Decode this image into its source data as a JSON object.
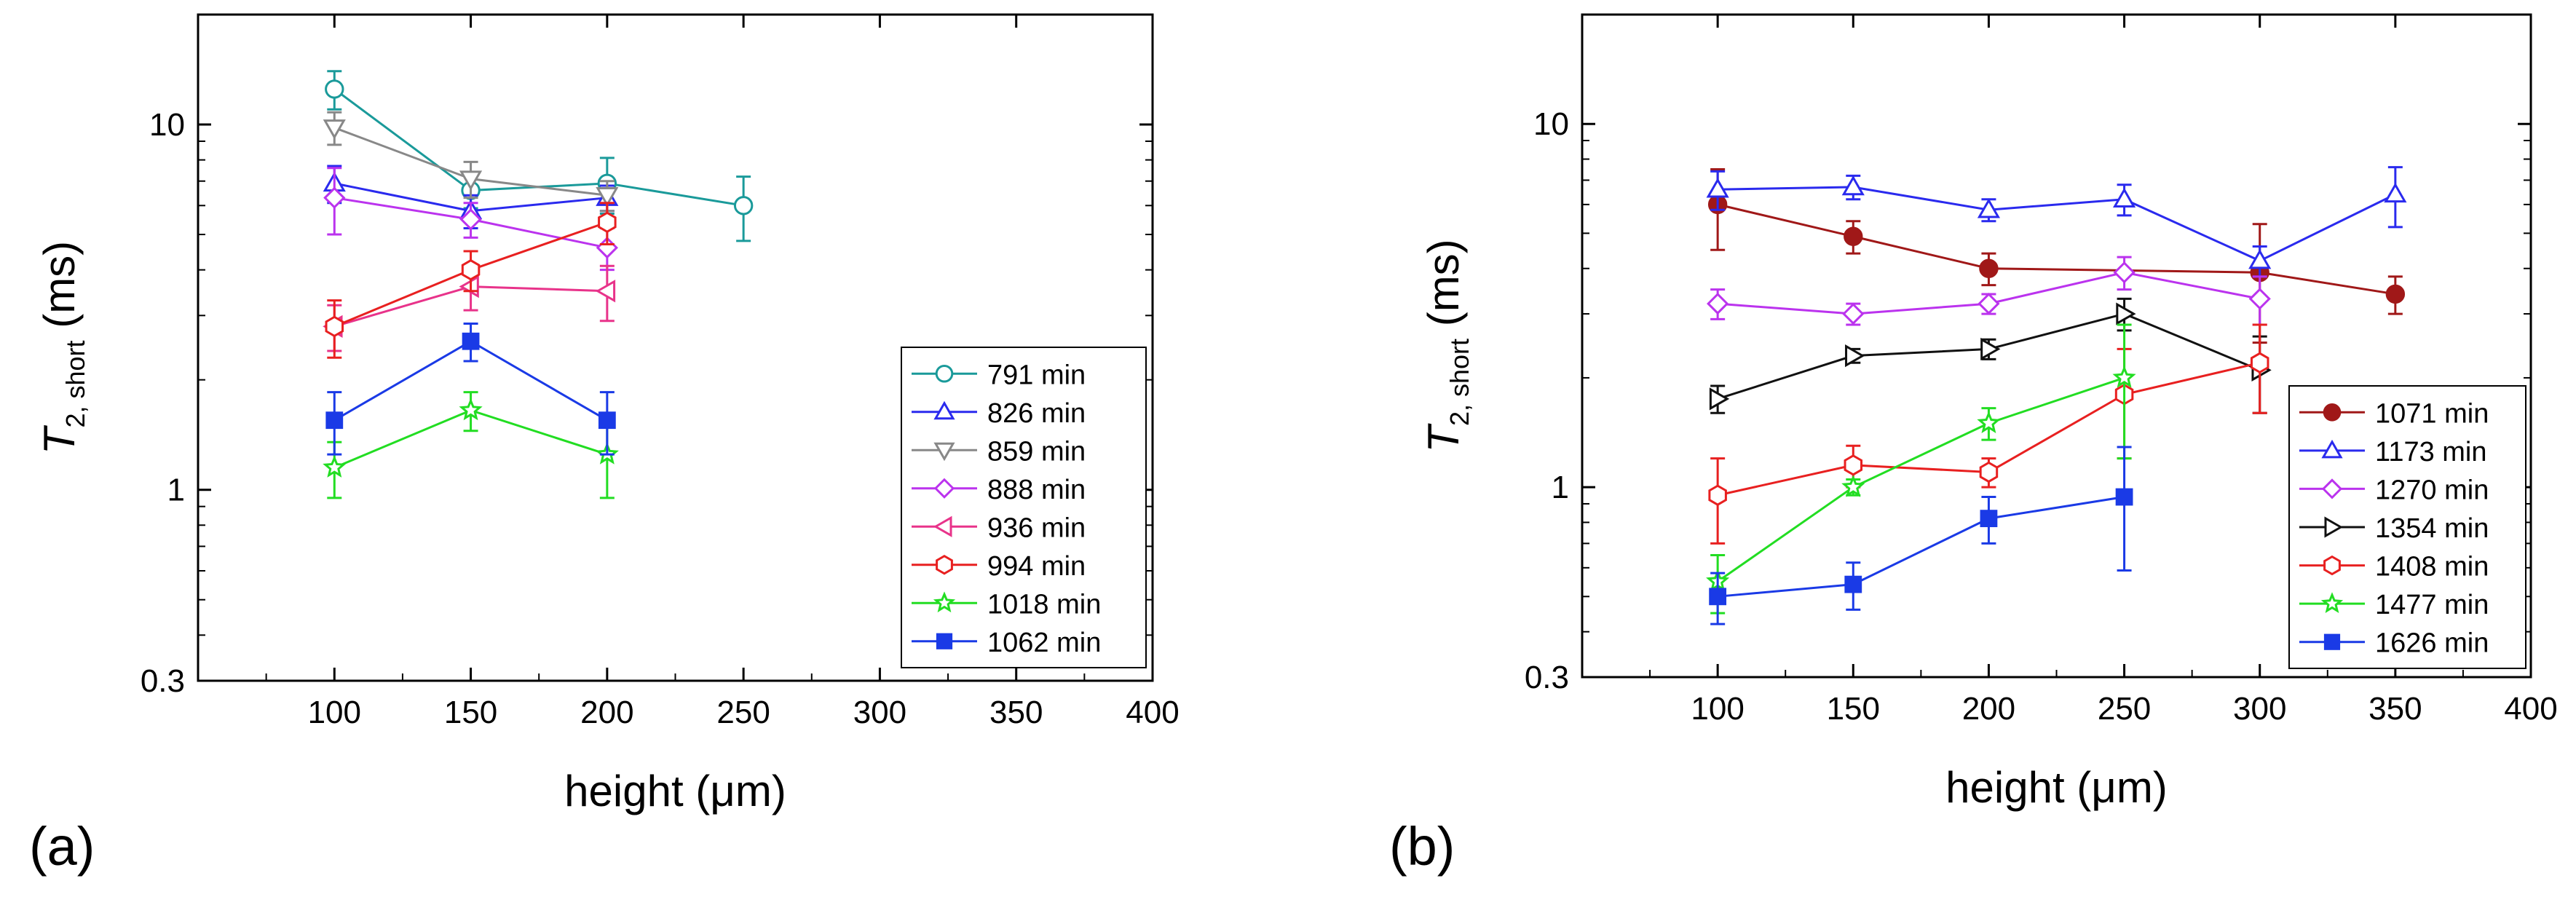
{
  "panels": [
    {
      "label": "(a)"
    },
    {
      "label": "(b)"
    }
  ],
  "chart_data": [
    {
      "type": "scatter",
      "panel": "(a)",
      "xlabel": "height (μm)",
      "ylabel_main": "T",
      "ylabel_sub": "2, short",
      "ylabel_unit": "(ms)",
      "xlim": [
        50,
        400
      ],
      "ylim": [
        0.3,
        20
      ],
      "yscale": "log",
      "xticks": [
        100,
        150,
        200,
        250,
        300,
        350,
        400
      ],
      "yticks": [
        0.3,
        1,
        10
      ],
      "ytick_labels": [
        "0.3",
        "1",
        "10"
      ],
      "legend_position": "right",
      "series": [
        {
          "name": "791 min",
          "color": "#1a9a9a",
          "marker": "circle",
          "filled": false,
          "x": [
            100,
            150,
            200,
            250
          ],
          "y": [
            12.5,
            6.6,
            6.9,
            6.0
          ],
          "err": [
            1.5,
            0.7,
            1.2,
            1.2
          ]
        },
        {
          "name": "826 min",
          "color": "#2a2aee",
          "marker": "triangle-up",
          "filled": false,
          "x": [
            100,
            150,
            200
          ],
          "y": [
            6.9,
            5.8,
            6.3
          ],
          "err": [
            0.8,
            0.6,
            0.5
          ]
        },
        {
          "name": "859 min",
          "color": "#888888",
          "marker": "triangle-down",
          "filled": false,
          "x": [
            100,
            150,
            200
          ],
          "y": [
            9.8,
            7.1,
            6.4
          ],
          "err": [
            1.0,
            0.8,
            0.6
          ]
        },
        {
          "name": "888 min",
          "color": "#bb33ee",
          "marker": "diamond",
          "filled": false,
          "x": [
            100,
            150,
            200
          ],
          "y": [
            6.3,
            5.5,
            4.6
          ],
          "err": [
            1.3,
            0.6,
            0.6
          ]
        },
        {
          "name": "936 min",
          "color": "#e8338a",
          "marker": "triangle-left",
          "filled": false,
          "x": [
            100,
            150,
            200
          ],
          "y": [
            2.8,
            3.6,
            3.5
          ],
          "err": [
            0.4,
            0.5,
            0.6
          ]
        },
        {
          "name": "994 min",
          "color": "#e82020",
          "marker": "hexagon",
          "filled": false,
          "x": [
            100,
            150,
            200
          ],
          "y": [
            2.8,
            4.0,
            5.4
          ],
          "err": [
            0.5,
            0.5,
            0.7
          ]
        },
        {
          "name": "1018 min",
          "color": "#22dd22",
          "marker": "star",
          "filled": false,
          "x": [
            100,
            150,
            200
          ],
          "y": [
            1.15,
            1.65,
            1.25
          ],
          "err": [
            0.2,
            0.2,
            0.3
          ]
        },
        {
          "name": "1062 min",
          "color": "#1a3ae6",
          "marker": "square",
          "filled": true,
          "x": [
            100,
            150,
            200
          ],
          "y": [
            1.55,
            2.55,
            1.55
          ],
          "err": [
            0.3,
            0.3,
            0.3
          ]
        }
      ]
    },
    {
      "type": "scatter",
      "panel": "(b)",
      "xlabel": "height (μm)",
      "ylabel_main": "T",
      "ylabel_sub": "2, short",
      "ylabel_unit": "(ms)",
      "xlim": [
        50,
        400
      ],
      "ylim": [
        0.3,
        20
      ],
      "yscale": "log",
      "xticks": [
        100,
        150,
        200,
        250,
        300,
        350,
        400
      ],
      "yticks": [
        0.3,
        1,
        10
      ],
      "ytick_labels": [
        "0.3",
        "1",
        "10"
      ],
      "legend_position": "right",
      "series": [
        {
          "name": "1071 min",
          "color": "#a01818",
          "marker": "circle",
          "filled": true,
          "x": [
            100,
            150,
            200,
            300,
            350
          ],
          "y": [
            6.0,
            4.9,
            4.0,
            3.9,
            3.4
          ],
          "err": [
            1.5,
            0.5,
            0.4,
            1.4,
            0.4
          ]
        },
        {
          "name": "1173 min",
          "color": "#2a2aee",
          "marker": "triangle-up",
          "filled": false,
          "x": [
            100,
            150,
            200,
            250,
            300,
            350
          ],
          "y": [
            6.6,
            6.7,
            5.8,
            6.2,
            4.2,
            6.4
          ],
          "err": [
            0.8,
            0.5,
            0.4,
            0.6,
            0.4,
            1.2
          ]
        },
        {
          "name": "1270 min",
          "color": "#bb33ee",
          "marker": "diamond",
          "filled": false,
          "x": [
            100,
            150,
            200,
            250,
            300
          ],
          "y": [
            3.2,
            3.0,
            3.2,
            3.9,
            3.3
          ],
          "err": [
            0.3,
            0.2,
            0.2,
            0.4,
            0.5
          ]
        },
        {
          "name": "1354 min",
          "color": "#111111",
          "marker": "triangle-right",
          "filled": false,
          "x": [
            100,
            150,
            200,
            250,
            300
          ],
          "y": [
            1.75,
            2.3,
            2.4,
            3.0,
            2.1
          ],
          "err": [
            0.15,
            0.1,
            0.15,
            0.3,
            0.5
          ]
        },
        {
          "name": "1408 min",
          "color": "#e82020",
          "marker": "hexagon",
          "filled": false,
          "x": [
            100,
            150,
            200,
            250,
            300
          ],
          "y": [
            0.95,
            1.15,
            1.1,
            1.8,
            2.2
          ],
          "err": [
            0.25,
            0.15,
            0.1,
            0.6,
            0.6
          ]
        },
        {
          "name": "1477 min",
          "color": "#22dd22",
          "marker": "star",
          "filled": false,
          "x": [
            100,
            150,
            200,
            250
          ],
          "y": [
            0.55,
            1.0,
            1.5,
            2.0
          ],
          "err": [
            0.1,
            0.05,
            0.15,
            0.8
          ]
        },
        {
          "name": "1626 min",
          "color": "#1a3ae6",
          "marker": "square",
          "filled": true,
          "x": [
            100,
            150,
            200,
            250
          ],
          "y": [
            0.5,
            0.54,
            0.82,
            0.94
          ],
          "err": [
            0.08,
            0.08,
            0.12,
            0.35
          ]
        }
      ]
    }
  ]
}
